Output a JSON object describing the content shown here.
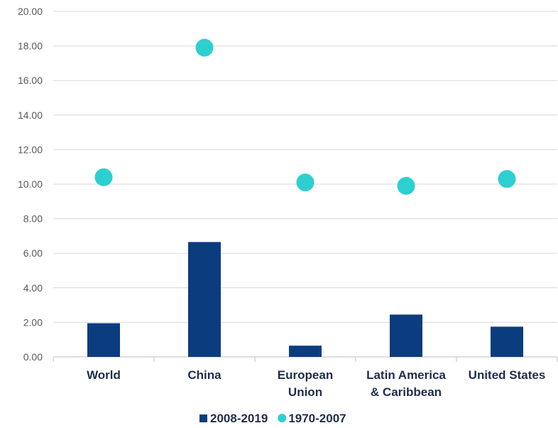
{
  "chart_data": {
    "type": "bar",
    "categories": [
      [
        "World"
      ],
      [
        "China"
      ],
      [
        "European",
        "Union"
      ],
      [
        "Latin America",
        "& Caribbean"
      ],
      [
        "United States"
      ]
    ],
    "series": [
      {
        "name": "2008-2019",
        "kind": "bar",
        "color": "#0b3d7e",
        "values": [
          1.95,
          6.65,
          0.65,
          2.45,
          1.75
        ]
      },
      {
        "name": "1970-2007",
        "kind": "scatter",
        "color": "#2ecfd0",
        "values": [
          10.4,
          17.9,
          10.1,
          9.9,
          10.3
        ]
      }
    ],
    "yticks": [
      "0.00",
      "2.00",
      "4.00",
      "6.00",
      "8.00",
      "10.00",
      "12.00",
      "14.00",
      "16.00",
      "18.00",
      "20.00"
    ],
    "ylim": [
      0,
      20
    ],
    "grid": true,
    "legend": "bottom"
  }
}
